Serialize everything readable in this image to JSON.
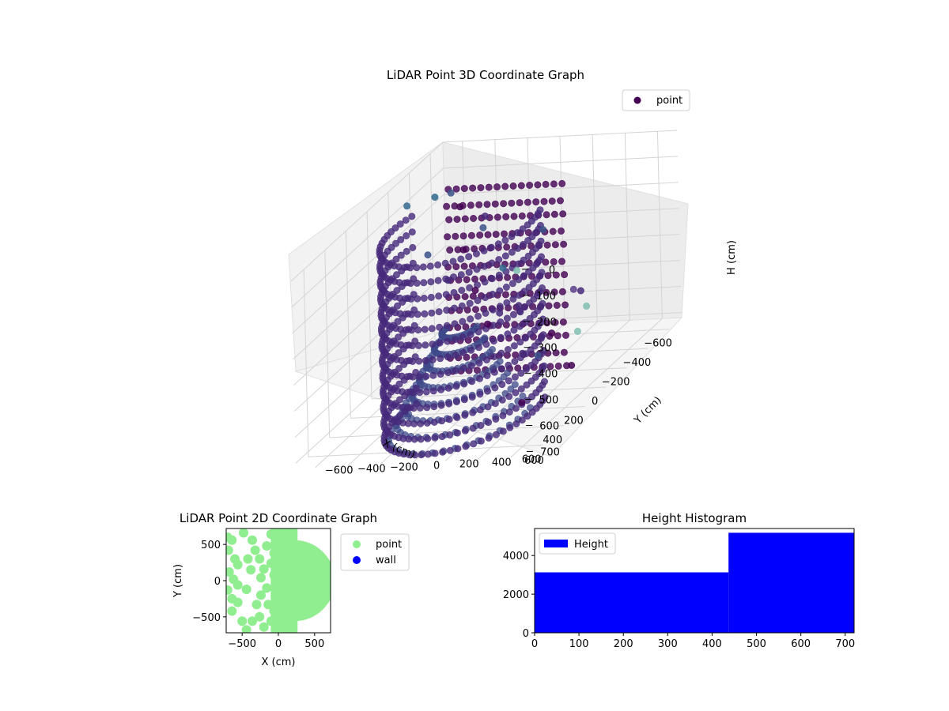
{
  "chart_data": [
    {
      "type": "scatter3d",
      "title": "LiDAR Point 3D Coordinate Graph",
      "xlabel": "X (cm)",
      "ylabel": "Y (cm)",
      "zlabel": "H (cm)",
      "xticks": [
        -600,
        -400,
        -200,
        0,
        200,
        400,
        600
      ],
      "yticks": [
        -600,
        -400,
        -200,
        0,
        200,
        400,
        600
      ],
      "zticks": [
        0,
        100,
        200,
        300,
        400,
        500,
        600,
        700
      ],
      "xlim": [
        -720,
        720
      ],
      "ylim": [
        -720,
        720
      ],
      "zlim": [
        0,
        720
      ],
      "z_inverted": true,
      "grid": true,
      "colormap": "viridis",
      "legend": {
        "entries": [
          {
            "name": "point",
            "color": "#440154"
          }
        ],
        "placement": "upper-right"
      },
      "series": [
        {
          "name": "point",
          "cylinder": {
            "center": [
              220,
              0
            ],
            "radius": 420,
            "arc_deg": [
              -110,
              110
            ],
            "h_range": [
              0,
              720
            ],
            "color": "#46297a"
          },
          "inner_cone": {
            "center": [
              250,
              0
            ],
            "radius": 380,
            "h_top": 720,
            "h_bottom": 380,
            "color": "#3e4a89"
          },
          "left_wall": {
            "x": -200,
            "y_range": [
              -350,
              350
            ],
            "h_range": [
              0,
              700
            ],
            "color": "#440154"
          },
          "outliers": [
            {
              "x": -700,
              "y": 150,
              "h": 650,
              "c": "#7fbfb0"
            },
            {
              "x": -690,
              "y": 80,
              "h": 580,
              "c": "#5b3f8a"
            },
            {
              "x": -600,
              "y": -200,
              "h": 600,
              "c": "#462a7a"
            },
            {
              "x": -560,
              "y": -380,
              "h": 280,
              "c": "#3b528b"
            },
            {
              "x": -500,
              "y": 250,
              "h": 520,
              "c": "#462a7a"
            },
            {
              "x": -470,
              "y": -120,
              "h": 420,
              "c": "#7fbfb0"
            },
            {
              "x": -420,
              "y": 80,
              "h": 250,
              "c": "#3b528b"
            },
            {
              "x": -400,
              "y": -260,
              "h": 180,
              "c": "#462a7a"
            },
            {
              "x": -370,
              "y": 310,
              "h": 630,
              "c": "#7fbfb0"
            },
            {
              "x": -330,
              "y": -420,
              "h": 60,
              "c": "#3b528b"
            },
            {
              "x": -300,
              "y": -120,
              "h": 520,
              "c": "#462a7a"
            },
            {
              "x": -280,
              "y": 210,
              "h": 600,
              "c": "#440154"
            },
            {
              "x": -250,
              "y": -60,
              "h": 330,
              "c": "#31688e"
            },
            {
              "x": -230,
              "y": -300,
              "h": 80,
              "c": "#440154"
            },
            {
              "x": -200,
              "y": 380,
              "h": 700,
              "c": "#440154"
            },
            {
              "x": -150,
              "y": -400,
              "h": 10,
              "c": "#31688e"
            },
            {
              "x": -130,
              "y": 120,
              "h": 460,
              "c": "#462a7a"
            },
            {
              "x": -100,
              "y": -200,
              "h": 200,
              "c": "#440154"
            },
            {
              "x": -70,
              "y": 260,
              "h": 610,
              "c": "#3b528b"
            },
            {
              "x": -40,
              "y": -500,
              "h": 0,
              "c": "#31688e"
            },
            {
              "x": -20,
              "y": -80,
              "h": 330,
              "c": "#440154"
            },
            {
              "x": 40,
              "y": 240,
              "h": 560,
              "c": "#462a7a"
            },
            {
              "x": 80,
              "y": -300,
              "h": 150,
              "c": "#3b528b"
            },
            {
              "x": 100,
              "y": 70,
              "h": 420,
              "c": "#440154"
            },
            {
              "x": 140,
              "y": -140,
              "h": 230,
              "c": "#462a7a"
            },
            {
              "x": 180,
              "y": 320,
              "h": 700,
              "c": "#440154"
            }
          ]
        }
      ]
    },
    {
      "type": "scatter",
      "title": "LiDAR Point 2D Coordinate Graph",
      "xlabel": "X (cm)",
      "ylabel": "Y (cm)",
      "xticks": [
        -500,
        0,
        500
      ],
      "yticks": [
        -500,
        0,
        500
      ],
      "xlim": [
        -720,
        720
      ],
      "ylim": [
        -720,
        720
      ],
      "legend": {
        "entries": [
          {
            "name": "point",
            "color": "#90ee90"
          },
          {
            "name": "wall",
            "color": "#0000ff"
          }
        ],
        "placement": "outside-right"
      },
      "series": [
        {
          "name": "point",
          "color": "#90ee90",
          "filled_half_disc": {
            "center": [
              220,
              0
            ],
            "radius": 500
          },
          "points": [
            [
              -700,
              600
            ],
            [
              -640,
              560
            ],
            [
              -690,
              420
            ],
            [
              -600,
              300
            ],
            [
              -560,
              220
            ],
            [
              -680,
              120
            ],
            [
              -620,
              20
            ],
            [
              -560,
              -60
            ],
            [
              -700,
              -130
            ],
            [
              -640,
              -250
            ],
            [
              -560,
              -300
            ],
            [
              -640,
              -420
            ],
            [
              -500,
              -560
            ],
            [
              -440,
              -680
            ],
            [
              -360,
              -560
            ],
            [
              -260,
              -500
            ],
            [
              -200,
              -640
            ],
            [
              -480,
              660
            ],
            [
              -360,
              560
            ],
            [
              -320,
              420
            ],
            [
              -260,
              300
            ],
            [
              -200,
              160
            ],
            [
              -240,
              40
            ],
            [
              -160,
              -100
            ],
            [
              -240,
              -200
            ],
            [
              -300,
              -330
            ],
            [
              -140,
              -330
            ],
            [
              -100,
              -560
            ],
            [
              -160,
              480
            ],
            [
              -100,
              640
            ],
            [
              -60,
              380
            ],
            [
              -100,
              240
            ],
            [
              -60,
              80
            ],
            [
              -40,
              -220
            ],
            [
              -60,
              -420
            ],
            [
              -20,
              -660
            ],
            [
              -420,
              300
            ],
            [
              -440,
              -120
            ],
            [
              -380,
              150
            ]
          ]
        },
        {
          "name": "wall",
          "color": "#0000ff",
          "points": []
        }
      ]
    },
    {
      "type": "histogram",
      "title": "Height Histogram",
      "xlabel": "",
      "ylabel": "",
      "xticks": [
        0,
        100,
        200,
        300,
        400,
        500,
        600,
        700
      ],
      "yticks": [
        0,
        2000,
        4000
      ],
      "xlim": [
        0,
        720
      ],
      "ylim": [
        0,
        5400
      ],
      "legend": {
        "entries": [
          {
            "name": "Height",
            "color": "#0000ff"
          }
        ],
        "placement": "upper-left"
      },
      "series": [
        {
          "name": "Height",
          "color": "#0000ff",
          "bins": [
            {
              "start": 0,
              "end": 437,
              "count": 3130
            },
            {
              "start": 437,
              "end": 720,
              "count": 5180
            }
          ]
        }
      ]
    }
  ]
}
